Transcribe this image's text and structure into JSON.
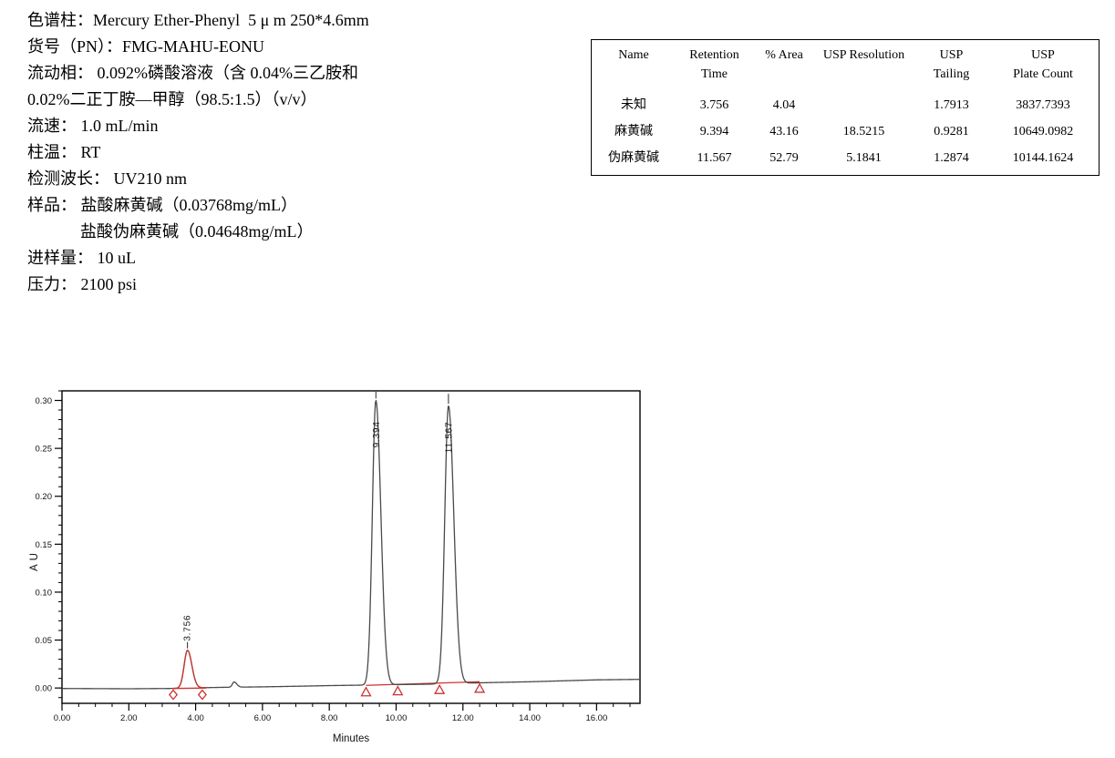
{
  "method_info": {
    "lines": [
      {
        "text": "色谱柱：Mercury Ether-Phenyl  5 μ m 250*4.6mm",
        "indent": false
      },
      {
        "text": "货号（PN）：FMG-MAHU-EONU",
        "indent": false
      },
      {
        "text": "流动相： 0.092%磷酸溶液（含 0.04%三乙胺和",
        "indent": false
      },
      {
        "text": "0.02%二正丁胺—甲醇（98.5:1.5）（v/v）",
        "indent": false
      },
      {
        "text": "流速： 1.0 mL/min",
        "indent": false
      },
      {
        "text": "柱温： RT",
        "indent": false
      },
      {
        "text": "检测波长： UV210 nm",
        "indent": false
      },
      {
        "text": "样品： 盐酸麻黄碱（0.03768mg/mL）",
        "indent": false
      },
      {
        "text": "盐酸伪麻黄碱（0.04648mg/mL）",
        "indent": true
      },
      {
        "text": "进样量： 10 uL",
        "indent": false
      },
      {
        "text": "压力： 2100 psi",
        "indent": false
      }
    ]
  },
  "results_table": {
    "columns": [
      {
        "line1": "Name",
        "line2": ""
      },
      {
        "line1": "Retention",
        "line2": "Time"
      },
      {
        "line1": "% Area",
        "line2": ""
      },
      {
        "line1": "USP Resolution",
        "line2": ""
      },
      {
        "line1": "USP",
        "line2": "Tailing"
      },
      {
        "line1": "USP",
        "line2": "Plate Count"
      }
    ],
    "rows": [
      [
        "未知",
        "3.756",
        "4.04",
        "",
        "1.7913",
        "3837.7393"
      ],
      [
        "麻黄碱",
        "9.394",
        "43.16",
        "18.5215",
        "0.9281",
        "10649.0982"
      ],
      [
        "伪麻黄碱",
        "11.567",
        "52.79",
        "5.1841",
        "1.2874",
        "10144.1624"
      ]
    ]
  },
  "chart_data": {
    "type": "line",
    "title": "",
    "xlabel": "Minutes",
    "ylabel": "AU",
    "xlim": [
      0,
      17.3
    ],
    "ylim": [
      -0.016,
      0.31
    ],
    "x_major_ticks": [
      0,
      2,
      4,
      6,
      8,
      10,
      12,
      14,
      16
    ],
    "x_tick_labels": [
      "0.00",
      "2.00",
      "4.00",
      "6.00",
      "8.00",
      "10.00",
      "12.00",
      "14.00",
      "16.00"
    ],
    "x_minor_step": 0.5,
    "y_major_ticks": [
      0.0,
      0.05,
      0.1,
      0.15,
      0.2,
      0.25,
      0.3
    ],
    "y_tick_labels": [
      "0.00",
      "0.05",
      "0.10",
      "0.15",
      "0.20",
      "0.25",
      "0.30"
    ],
    "y_minor_step": 0.01,
    "grid": false,
    "colors": {
      "trace": "#4a4a4a",
      "integration": "#cc3333",
      "frame": "#000000",
      "label": "#111111"
    },
    "peaks": [
      {
        "name": "未知",
        "label": "3.756",
        "rt": 3.756,
        "height_au": 0.0395,
        "sigma_l": 0.1,
        "sigma_r": 0.13,
        "color": "#cc3333",
        "area_pct": 4.04
      },
      {
        "name": "麻黄碱",
        "label": "9.394",
        "rt": 9.394,
        "height_au": 0.297,
        "sigma_l": 0.105,
        "sigma_r": 0.15,
        "color": "#4a4a4a",
        "area_pct": 43.16
      },
      {
        "name": "伪麻黄碱",
        "label": "11.567",
        "rt": 11.567,
        "height_au": 0.29,
        "sigma_l": 0.11,
        "sigma_r": 0.16,
        "color": "#4a4a4a",
        "area_pct": 52.79
      }
    ],
    "minor_disturbance": {
      "rt": 5.15,
      "height_au": 0.0055,
      "sigma_l": 0.05,
      "sigma_r": 0.08
    },
    "baseline_points": [
      [
        0,
        -0.0005
      ],
      [
        2,
        -0.0008
      ],
      [
        3.2,
        -0.0005
      ],
      [
        4.5,
        0.0005
      ],
      [
        5,
        0.0008
      ],
      [
        6,
        0.0012
      ],
      [
        7,
        0.0018
      ],
      [
        8,
        0.0025
      ],
      [
        9,
        0.003
      ],
      [
        10,
        0.0035
      ],
      [
        11,
        0.004
      ],
      [
        12,
        0.005
      ],
      [
        13,
        0.0058
      ],
      [
        14,
        0.0065
      ],
      [
        15,
        0.0075
      ],
      [
        16,
        0.0085
      ],
      [
        17.3,
        0.009
      ]
    ],
    "integration": {
      "peak1_red_range": [
        3.3,
        4.32
      ],
      "baseline_segments": [
        {
          "x1": 3.3,
          "y1": -0.0005,
          "x2": 4.32,
          "y2": 0.0
        },
        {
          "x1": 9.1,
          "y1": 0.0028,
          "x2": 12.5,
          "y2": 0.0065
        }
      ],
      "diamond_markers_x": [
        3.33,
        4.2
      ],
      "triangle_markers_x": [
        9.1,
        10.05,
        11.3,
        12.5
      ]
    }
  }
}
